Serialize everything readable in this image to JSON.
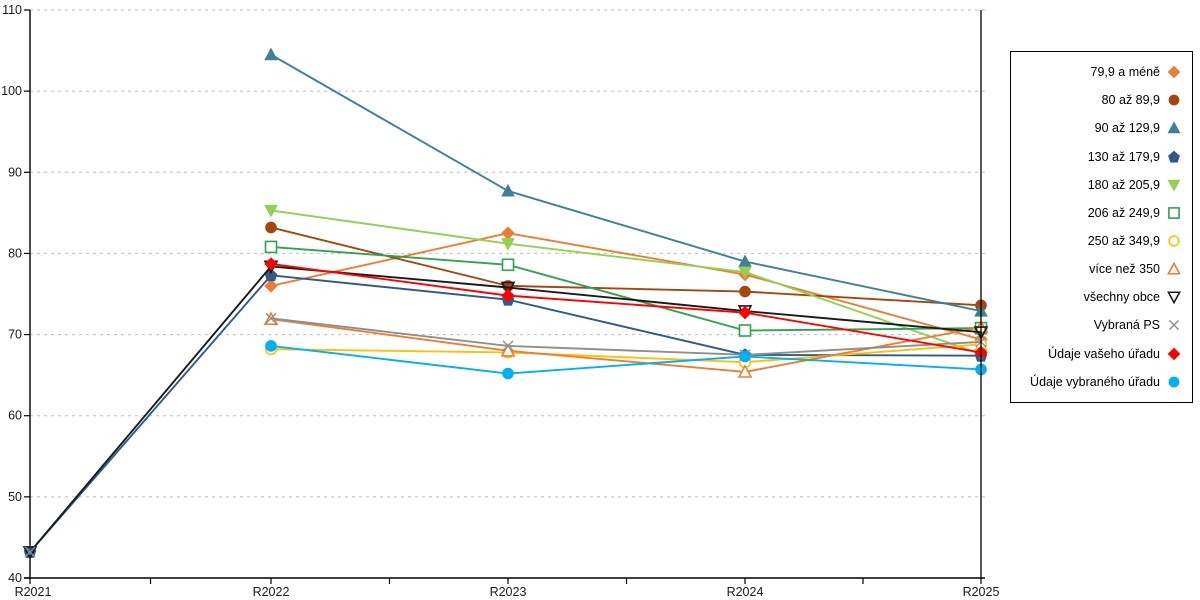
{
  "chart_data": {
    "type": "line",
    "title": "",
    "xlabel": "",
    "ylabel": "",
    "categories": [
      "R2021",
      "R2022",
      "R2023",
      "R2024",
      "R2025"
    ],
    "y_ticks": [
      40,
      50,
      60,
      70,
      80,
      90,
      100,
      110
    ],
    "ylim": [
      40,
      110
    ],
    "grid": "horizontal-dashed",
    "legend_position": "right-outside",
    "current_period_marker": "vertical line at R2025",
    "series": [
      {
        "name": "79,9 a méně",
        "marker": "diamond",
        "style": "filled",
        "color": "#ED7D31",
        "values": [
          null,
          76.0,
          82.5,
          77.4,
          69.4
        ]
      },
      {
        "name": "80 až 89,9",
        "marker": "circle",
        "style": "filled",
        "color": "#A6450C",
        "values": [
          null,
          83.2,
          76.0,
          75.3,
          73.6
        ]
      },
      {
        "name": "90 až 129,9",
        "marker": "triangle-up",
        "style": "filled",
        "color": "#3C8195",
        "values": [
          null,
          104.5,
          87.7,
          79.0,
          72.9
        ]
      },
      {
        "name": "130 až 179,9",
        "marker": "pentagon",
        "style": "filled",
        "color": "#2F5A8C",
        "values": [
          43.2,
          77.3,
          74.3,
          67.5,
          67.4
        ]
      },
      {
        "name": "180 až 205,9",
        "marker": "triangle-down",
        "style": "filled",
        "color": "#92D050",
        "values": [
          null,
          85.3,
          81.2,
          77.7,
          67.6
        ]
      },
      {
        "name": "206 až 249,9",
        "marker": "square",
        "style": "open",
        "color": "#2DA44E",
        "values": [
          null,
          80.8,
          78.6,
          70.5,
          70.8
        ]
      },
      {
        "name": "250 až 349,9",
        "marker": "circle",
        "style": "open",
        "color": "#FFC000",
        "values": [
          null,
          68.2,
          67.8,
          66.6,
          68.8
        ]
      },
      {
        "name": "více než 350",
        "marker": "triangle-up",
        "style": "open",
        "color": "#ED7D31",
        "values": [
          null,
          71.9,
          68.0,
          65.4,
          70.9
        ]
      },
      {
        "name": "všechny obce",
        "marker": "triangle-down",
        "style": "outline",
        "color": "#1A1A1A",
        "values": [
          43.2,
          78.4,
          75.8,
          72.9,
          70.3
        ]
      },
      {
        "name": "Vybraná PS",
        "marker": "x-cross",
        "style": "cross",
        "color": "#8F8F8F",
        "values": [
          43.2,
          72.0,
          68.6,
          67.5,
          69.1
        ],
        "line_gaps": [
          0
        ]
      },
      {
        "name": "Údaje vašeho úřadu",
        "marker": "diamond",
        "style": "filled",
        "color": "#FF0000",
        "values": [
          null,
          78.7,
          74.8,
          72.7,
          67.8
        ]
      },
      {
        "name": "Údaje vybraného úřadu",
        "marker": "circle",
        "style": "filled",
        "color": "#00B0F0",
        "values": [
          null,
          68.6,
          65.2,
          67.3,
          65.7
        ]
      }
    ]
  },
  "axis_colors": {
    "axis_line": "#000000",
    "grid_line": "#BDBDBD",
    "tick_label": "#1A1A1A"
  }
}
